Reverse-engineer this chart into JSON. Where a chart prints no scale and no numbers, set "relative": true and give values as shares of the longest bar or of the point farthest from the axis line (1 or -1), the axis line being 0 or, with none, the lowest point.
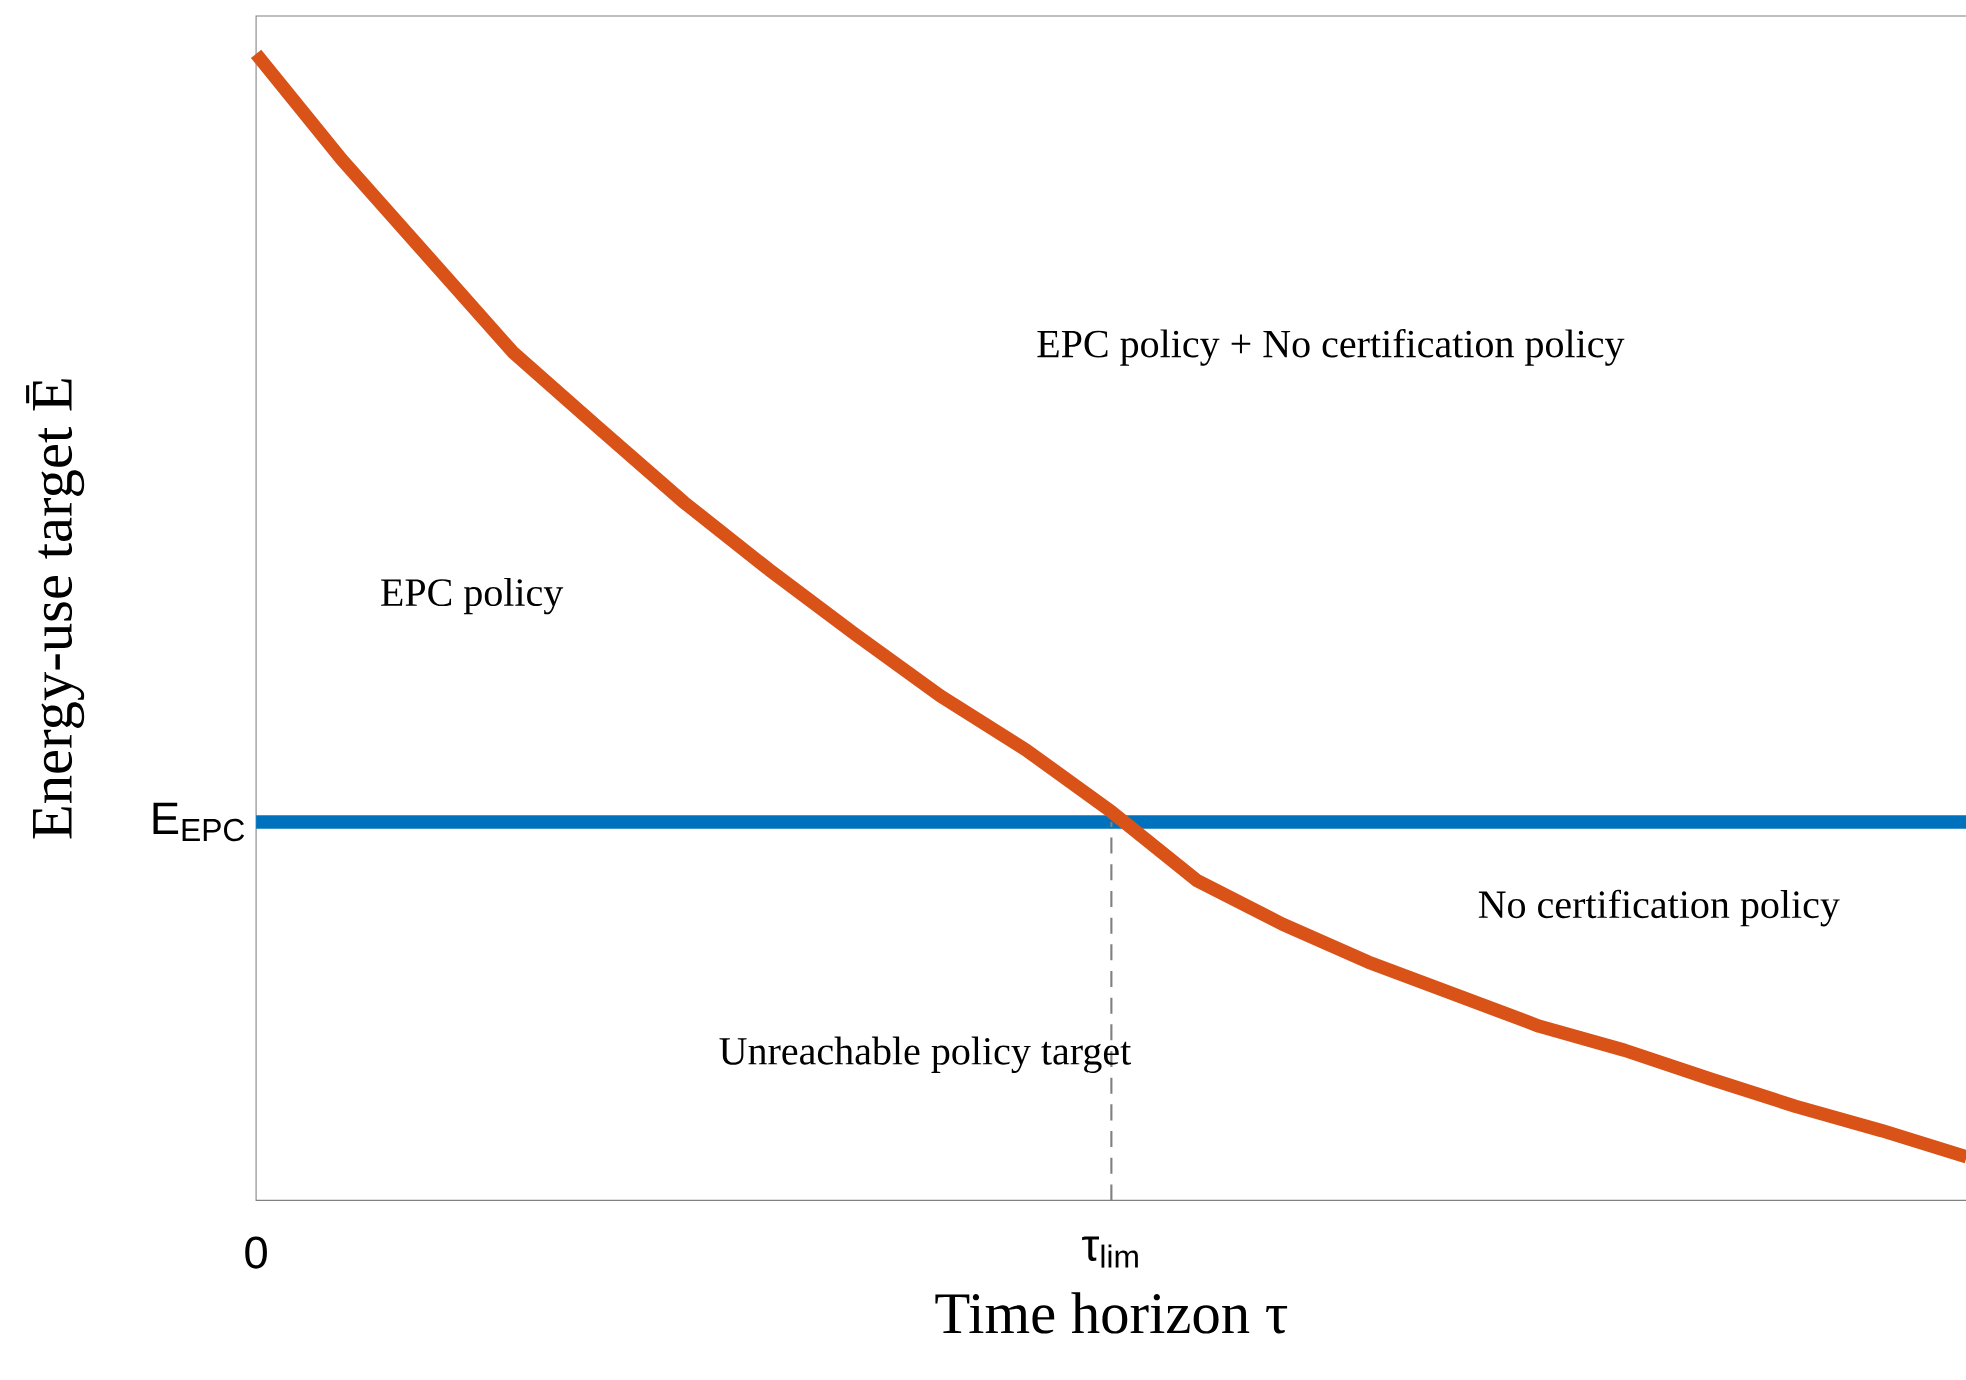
{
  "chart_data": {
    "type": "line",
    "relative": true,
    "xlabel": "Time horizon τ",
    "ylabel": "Energy-use target Ē",
    "categories": [
      "0",
      null,
      null,
      null,
      null,
      null,
      null,
      null,
      null,
      null,
      "τ$_{lim}$",
      null,
      null,
      null,
      null,
      null,
      null,
      null,
      null,
      null,
      null
    ],
    "series": [
      {
        "color": "#d95319",
        "values": [
          1.0,
          0.908,
          0.824,
          0.74,
          0.674,
          0.609,
          0.55,
          0.494,
          0.44,
          0.393,
          0.339,
          0.279,
          0.241,
          0.208,
          0.18,
          0.152,
          0.131,
          0.106,
          0.082,
          0.061,
          0.038
        ]
      }
    ],
    "tick_labels": "x",
    "ref_lines": [
      {
        "axis": "y",
        "value": 0.33,
        "label": "E$_{EPC}$",
        "color": "#0072bd",
        "line_style": "solid"
      },
      {
        "axis": "x",
        "value": "τ$_{lim}$",
        "color": "#808080",
        "line_style": "dashed"
      }
    ],
    "annotations": [
      "EPC policy + No certification policy",
      "EPC policy",
      "No certification policy",
      "Unreachable policy target"
    ]
  }
}
